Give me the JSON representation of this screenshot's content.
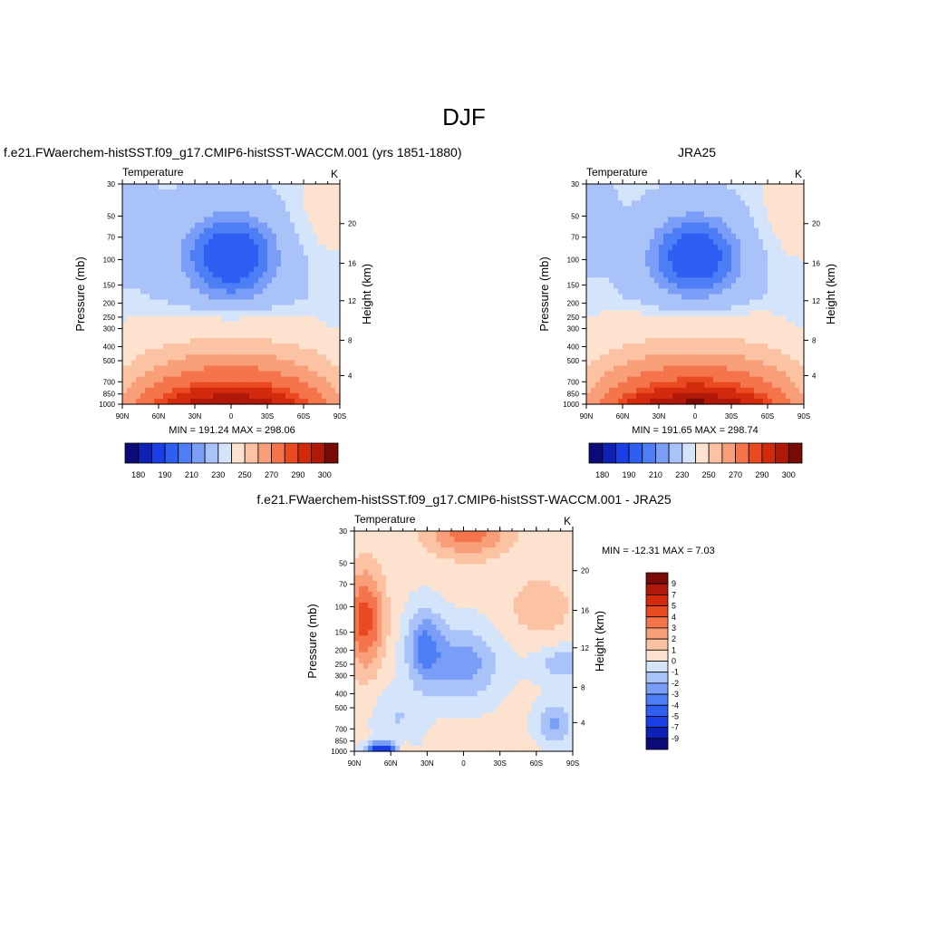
{
  "page_title": "DJF",
  "panels": [
    {
      "id": "model",
      "title": "f.e21.FWaerchem-histSST.f09_g17.CMIP6-histSST-WACCM.001 (yrs 1851-1880)",
      "left_label": "Temperature",
      "right_label": "K",
      "minmax": "MIN = 191.24  MAX = 298.06"
    },
    {
      "id": "jra",
      "title": "JRA25",
      "left_label": "Temperature",
      "right_label": "K",
      "minmax": "MIN = 191.65  MAX = 298.74"
    },
    {
      "id": "diff",
      "title": "f.e21.FWaerchem-histSST.f09_g17.CMIP6-histSST-WACCM.001 - JRA25",
      "left_label": "Temperature",
      "right_label": "K",
      "minmax": "MIN = -12.31  MAX =   7.03"
    }
  ],
  "axes": {
    "ylabel": "Pressure (mb)",
    "y2label": "Height (km)",
    "x_ticks": [
      "90N",
      "60N",
      "30N",
      "0",
      "30S",
      "60S",
      "90S"
    ],
    "pressure_ticks": [
      "30",
      "50",
      "70",
      "100",
      "150",
      "200",
      "250",
      "300",
      "400",
      "500",
      "700",
      "850",
      "1000"
    ],
    "height_ticks": [
      "20",
      "16",
      "12",
      "8",
      "4"
    ],
    "diff_height_ticks": [
      "20",
      "16",
      "12",
      "8",
      "4"
    ]
  },
  "colorbars": {
    "absolute": {
      "labels": [
        "180",
        "190",
        "210",
        "230",
        "250",
        "270",
        "290",
        "300"
      ],
      "colors": [
        "#0a0a78",
        "#0d22b4",
        "#1a3ee6",
        "#2f5ef2",
        "#4d7ef5",
        "#7a9ef7",
        "#a9c3f8",
        "#d4e4fb",
        "#fde3cf",
        "#fbc3a3",
        "#f89e78",
        "#f4744c",
        "#ea4a22",
        "#d22a0c",
        "#b0180a",
        "#7a0a05"
      ]
    },
    "difference": {
      "labels": [
        "9",
        "7",
        "5",
        "4",
        "3",
        "2",
        "1",
        "0",
        "-1",
        "-2",
        "-3",
        "-4",
        "-5",
        "-7",
        "-9"
      ],
      "colors": [
        "#7a0a05",
        "#b0180a",
        "#d22a0c",
        "#ea4a22",
        "#f4744c",
        "#f89e78",
        "#fbc3a3",
        "#fde3cf",
        "#d4e4fb",
        "#a9c3f8",
        "#7a9ef7",
        "#4d7ef5",
        "#2f5ef2",
        "#1a3ee6",
        "#0d22b4",
        "#0a0a78"
      ]
    }
  },
  "chart_data": [
    {
      "type": "heatmap",
      "title": "f.e21.FWaerchem-histSST.f09_g17.CMIP6-histSST-WACCM.001 (yrs 1851-1880)",
      "variable": "Temperature",
      "units": "K",
      "xlabel": "",
      "ylabel": "Pressure (mb)",
      "y2label": "Height (km)",
      "x_range": [
        "90N",
        "90S"
      ],
      "y_range_mb": [
        30,
        1000
      ],
      "y_scale": "log",
      "min": 191.24,
      "max": 298.06,
      "levels": [
        180,
        190,
        210,
        230,
        250,
        270,
        290,
        300
      ]
    },
    {
      "type": "heatmap",
      "title": "JRA25",
      "variable": "Temperature",
      "units": "K",
      "xlabel": "",
      "ylabel": "Pressure (mb)",
      "y2label": "Height (km)",
      "x_range": [
        "90N",
        "90S"
      ],
      "y_range_mb": [
        30,
        1000
      ],
      "y_scale": "log",
      "min": 191.65,
      "max": 298.74,
      "levels": [
        180,
        190,
        210,
        230,
        250,
        270,
        290,
        300
      ]
    },
    {
      "type": "heatmap",
      "title": "f.e21.FWaerchem-histSST.f09_g17.CMIP6-histSST-WACCM.001 - JRA25",
      "variable": "Temperature",
      "units": "K",
      "xlabel": "",
      "ylabel": "Pressure (mb)",
      "y2label": "Height (km)",
      "x_range": [
        "90N",
        "90S"
      ],
      "y_range_mb": [
        30,
        1000
      ],
      "y_scale": "log",
      "min": -12.31,
      "max": 7.03,
      "levels": [
        -9,
        -7,
        -5,
        -4,
        -3,
        -2,
        -1,
        0,
        1,
        2,
        3,
        4,
        5,
        7,
        9
      ]
    }
  ]
}
